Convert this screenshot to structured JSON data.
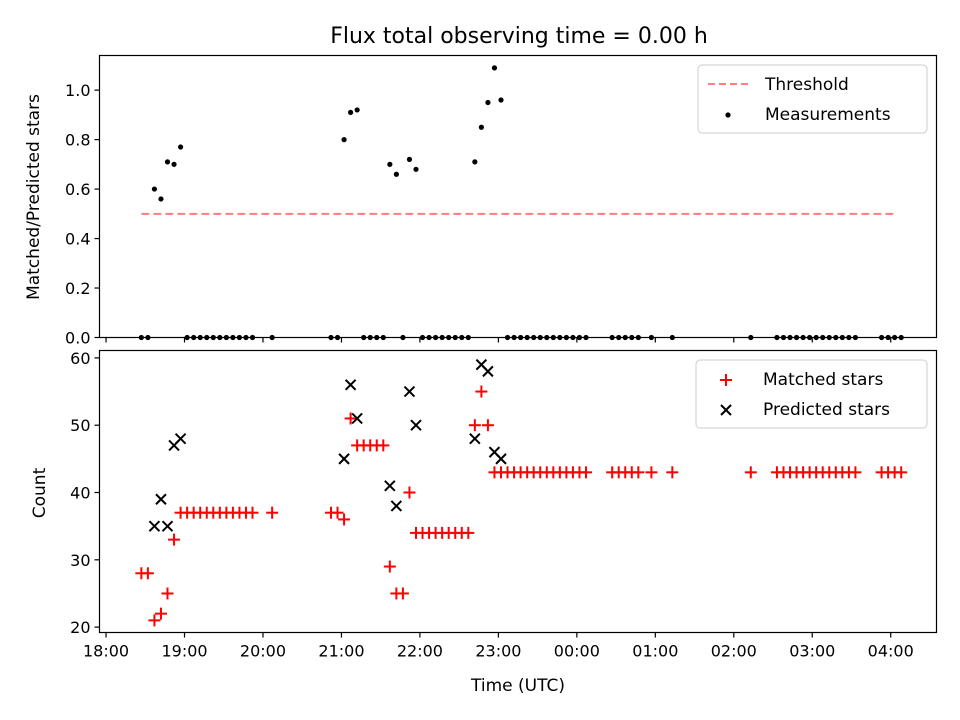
{
  "figure": {
    "title": "Flux total observing time = 0.00 h"
  },
  "chart_data": [
    {
      "type": "scatter",
      "ylabel": "Matched/Predicted stars",
      "xlim": [
        "17:55",
        "04:35"
      ],
      "ylim": [
        0,
        1.14
      ],
      "yticks": [
        "0.0",
        "0.2",
        "0.4",
        "0.6",
        "0.8",
        "1.0"
      ],
      "ytick_values": [
        0,
        0.2,
        0.4,
        0.6,
        0.8,
        1.0
      ],
      "legend_position": "upper right",
      "grid": false,
      "series": [
        {
          "name": "Threshold",
          "style": "dashed-line",
          "color": "#ff7f7f",
          "points": [
            [
              "18:27",
              0.5
            ],
            [
              "04:04",
              0.5
            ]
          ]
        },
        {
          "name": "Measurements",
          "style": "dot",
          "color": "#000000",
          "points": [
            [
              "18:27",
              0
            ],
            [
              "18:32",
              0
            ],
            [
              "18:37",
              0.6
            ],
            [
              "18:42",
              0.56
            ],
            [
              "18:47",
              0.71
            ],
            [
              "18:52",
              0.7
            ],
            [
              "18:57",
              0.77
            ],
            [
              "19:02",
              0
            ],
            [
              "19:07",
              0
            ],
            [
              "19:12",
              0
            ],
            [
              "19:17",
              0
            ],
            [
              "19:22",
              0
            ],
            [
              "19:27",
              0
            ],
            [
              "19:32",
              0
            ],
            [
              "19:37",
              0
            ],
            [
              "19:42",
              0
            ],
            [
              "19:47",
              0
            ],
            [
              "19:52",
              0
            ],
            [
              "20:07",
              0
            ],
            [
              "20:52",
              0
            ],
            [
              "20:57",
              0
            ],
            [
              "21:02",
              0.8
            ],
            [
              "21:07",
              0.91
            ],
            [
              "21:12",
              0.92
            ],
            [
              "21:17",
              0
            ],
            [
              "21:22",
              0
            ],
            [
              "21:27",
              0
            ],
            [
              "21:32",
              0
            ],
            [
              "21:37",
              0.7
            ],
            [
              "21:42",
              0.66
            ],
            [
              "21:47",
              0
            ],
            [
              "21:52",
              0.72
            ],
            [
              "21:57",
              0.68
            ],
            [
              "22:02",
              0
            ],
            [
              "22:07",
              0
            ],
            [
              "22:12",
              0
            ],
            [
              "22:17",
              0
            ],
            [
              "22:22",
              0
            ],
            [
              "22:27",
              0
            ],
            [
              "22:32",
              0
            ],
            [
              "22:37",
              0
            ],
            [
              "22:42",
              0.71
            ],
            [
              "22:47",
              0.85
            ],
            [
              "22:52",
              0.95
            ],
            [
              "22:57",
              1.09
            ],
            [
              "23:02",
              0.96
            ],
            [
              "23:07",
              0
            ],
            [
              "23:12",
              0
            ],
            [
              "23:17",
              0
            ],
            [
              "23:22",
              0
            ],
            [
              "23:27",
              0
            ],
            [
              "23:32",
              0
            ],
            [
              "23:37",
              0
            ],
            [
              "23:42",
              0
            ],
            [
              "23:47",
              0
            ],
            [
              "23:52",
              0
            ],
            [
              "23:57",
              0
            ],
            [
              "00:02",
              0
            ],
            [
              "00:07",
              0
            ],
            [
              "00:27",
              0
            ],
            [
              "00:32",
              0
            ],
            [
              "00:37",
              0
            ],
            [
              "00:42",
              0
            ],
            [
              "00:47",
              0
            ],
            [
              "00:57",
              0
            ],
            [
              "01:13",
              0
            ],
            [
              "02:13",
              0
            ],
            [
              "02:33",
              0
            ],
            [
              "02:38",
              0
            ],
            [
              "02:43",
              0
            ],
            [
              "02:48",
              0
            ],
            [
              "02:53",
              0
            ],
            [
              "02:58",
              0
            ],
            [
              "03:03",
              0
            ],
            [
              "03:08",
              0
            ],
            [
              "03:13",
              0
            ],
            [
              "03:18",
              0
            ],
            [
              "03:23",
              0
            ],
            [
              "03:28",
              0
            ],
            [
              "03:33",
              0
            ],
            [
              "03:53",
              0
            ],
            [
              "03:58",
              0
            ],
            [
              "04:03",
              0
            ],
            [
              "04:08",
              0
            ]
          ]
        }
      ]
    },
    {
      "type": "scatter",
      "ylabel": "Count",
      "xlabel": "Time (UTC)",
      "xlim": [
        "17:55",
        "04:35"
      ],
      "ylim": [
        19.2,
        61.1
      ],
      "xticks": [
        "18:00",
        "19:00",
        "20:00",
        "21:00",
        "22:00",
        "23:00",
        "00:00",
        "01:00",
        "02:00",
        "03:00",
        "04:00"
      ],
      "yticks": [
        "20",
        "30",
        "40",
        "50",
        "60"
      ],
      "ytick_values": [
        20,
        30,
        40,
        50,
        60
      ],
      "legend_position": "upper right",
      "grid": false,
      "series": [
        {
          "name": "Matched stars",
          "style": "plus",
          "color": "#ff0000",
          "points": [
            [
              "18:27",
              28
            ],
            [
              "18:32",
              28
            ],
            [
              "18:37",
              21
            ],
            [
              "18:42",
              22
            ],
            [
              "18:47",
              25
            ],
            [
              "18:52",
              33
            ],
            [
              "18:57",
              37
            ],
            [
              "19:02",
              37
            ],
            [
              "19:07",
              37
            ],
            [
              "19:12",
              37
            ],
            [
              "19:17",
              37
            ],
            [
              "19:22",
              37
            ],
            [
              "19:27",
              37
            ],
            [
              "19:32",
              37
            ],
            [
              "19:37",
              37
            ],
            [
              "19:42",
              37
            ],
            [
              "19:47",
              37
            ],
            [
              "19:52",
              37
            ],
            [
              "20:07",
              37
            ],
            [
              "20:52",
              37
            ],
            [
              "20:57",
              37
            ],
            [
              "21:02",
              36
            ],
            [
              "21:07",
              51
            ],
            [
              "21:12",
              47
            ],
            [
              "21:17",
              47
            ],
            [
              "21:22",
              47
            ],
            [
              "21:27",
              47
            ],
            [
              "21:32",
              47
            ],
            [
              "21:37",
              29
            ],
            [
              "21:42",
              25
            ],
            [
              "21:47",
              25
            ],
            [
              "21:52",
              40
            ],
            [
              "21:57",
              34
            ],
            [
              "22:02",
              34
            ],
            [
              "22:07",
              34
            ],
            [
              "22:12",
              34
            ],
            [
              "22:17",
              34
            ],
            [
              "22:22",
              34
            ],
            [
              "22:27",
              34
            ],
            [
              "22:32",
              34
            ],
            [
              "22:37",
              34
            ],
            [
              "22:42",
              50
            ],
            [
              "22:47",
              55
            ],
            [
              "22:52",
              50
            ],
            [
              "22:57",
              43
            ],
            [
              "23:02",
              43
            ],
            [
              "23:07",
              43
            ],
            [
              "23:12",
              43
            ],
            [
              "23:17",
              43
            ],
            [
              "23:22",
              43
            ],
            [
              "23:27",
              43
            ],
            [
              "23:32",
              43
            ],
            [
              "23:37",
              43
            ],
            [
              "23:42",
              43
            ],
            [
              "23:47",
              43
            ],
            [
              "23:52",
              43
            ],
            [
              "23:57",
              43
            ],
            [
              "00:02",
              43
            ],
            [
              "00:07",
              43
            ],
            [
              "00:27",
              43
            ],
            [
              "00:32",
              43
            ],
            [
              "00:37",
              43
            ],
            [
              "00:42",
              43
            ],
            [
              "00:47",
              43
            ],
            [
              "00:57",
              43
            ],
            [
              "01:13",
              43
            ],
            [
              "02:13",
              43
            ],
            [
              "02:33",
              43
            ],
            [
              "02:38",
              43
            ],
            [
              "02:43",
              43
            ],
            [
              "02:48",
              43
            ],
            [
              "02:53",
              43
            ],
            [
              "02:58",
              43
            ],
            [
              "03:03",
              43
            ],
            [
              "03:08",
              43
            ],
            [
              "03:13",
              43
            ],
            [
              "03:18",
              43
            ],
            [
              "03:23",
              43
            ],
            [
              "03:28",
              43
            ],
            [
              "03:33",
              43
            ],
            [
              "03:53",
              43
            ],
            [
              "03:58",
              43
            ],
            [
              "04:03",
              43
            ],
            [
              "04:08",
              43
            ]
          ]
        },
        {
          "name": "Predicted stars",
          "style": "x",
          "color": "#000000",
          "points": [
            [
              "18:37",
              35
            ],
            [
              "18:42",
              39
            ],
            [
              "18:47",
              35
            ],
            [
              "18:52",
              47
            ],
            [
              "18:57",
              48
            ],
            [
              "21:02",
              45
            ],
            [
              "21:07",
              56
            ],
            [
              "21:12",
              51
            ],
            [
              "21:37",
              41
            ],
            [
              "21:42",
              38
            ],
            [
              "21:52",
              55
            ],
            [
              "21:57",
              50
            ],
            [
              "22:42",
              48
            ],
            [
              "22:47",
              59
            ],
            [
              "22:52",
              58
            ],
            [
              "22:57",
              46
            ],
            [
              "23:02",
              45
            ]
          ]
        }
      ]
    }
  ]
}
